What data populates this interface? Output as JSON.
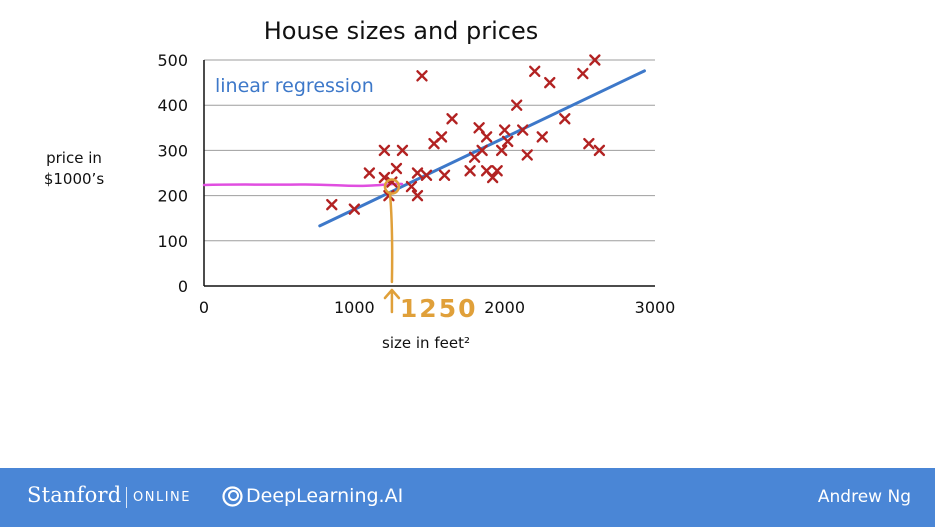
{
  "chart_data": {
    "type": "scatter",
    "title": "House sizes and prices",
    "xlabel": "size in feet²",
    "ylabel_line1": "price in",
    "ylabel_line2": "$1000’s",
    "xlim": [
      0,
      3000
    ],
    "ylim": [
      0,
      500
    ],
    "x_ticks": [
      0,
      1000,
      2000,
      3000
    ],
    "y_ticks": [
      0,
      100,
      200,
      300,
      400,
      500
    ],
    "grid": "horizontal",
    "points": [
      {
        "x": 850,
        "y": 180
      },
      {
        "x": 1000,
        "y": 170
      },
      {
        "x": 1100,
        "y": 250
      },
      {
        "x": 1200,
        "y": 300
      },
      {
        "x": 1200,
        "y": 240
      },
      {
        "x": 1230,
        "y": 200
      },
      {
        "x": 1250,
        "y": 230
      },
      {
        "x": 1280,
        "y": 260
      },
      {
        "x": 1320,
        "y": 300
      },
      {
        "x": 1380,
        "y": 220
      },
      {
        "x": 1420,
        "y": 250
      },
      {
        "x": 1420,
        "y": 200
      },
      {
        "x": 1450,
        "y": 465
      },
      {
        "x": 1480,
        "y": 245
      },
      {
        "x": 1530,
        "y": 315
      },
      {
        "x": 1580,
        "y": 330
      },
      {
        "x": 1600,
        "y": 245
      },
      {
        "x": 1650,
        "y": 370
      },
      {
        "x": 1770,
        "y": 255
      },
      {
        "x": 1800,
        "y": 285
      },
      {
        "x": 1830,
        "y": 350
      },
      {
        "x": 1850,
        "y": 300
      },
      {
        "x": 1880,
        "y": 330
      },
      {
        "x": 1880,
        "y": 255
      },
      {
        "x": 1920,
        "y": 240
      },
      {
        "x": 1950,
        "y": 255
      },
      {
        "x": 1980,
        "y": 300
      },
      {
        "x": 2000,
        "y": 345
      },
      {
        "x": 2020,
        "y": 320
      },
      {
        "x": 2080,
        "y": 400
      },
      {
        "x": 2120,
        "y": 345
      },
      {
        "x": 2150,
        "y": 290
      },
      {
        "x": 2200,
        "y": 475
      },
      {
        "x": 2250,
        "y": 330
      },
      {
        "x": 2300,
        "y": 450
      },
      {
        "x": 2400,
        "y": 370
      },
      {
        "x": 2520,
        "y": 470
      },
      {
        "x": 2560,
        "y": 315
      },
      {
        "x": 2600,
        "y": 500
      },
      {
        "x": 2630,
        "y": 300
      }
    ],
    "regression_line": {
      "label": "linear regression",
      "x": [
        770,
        2930
      ],
      "y": [
        133,
        476
      ]
    },
    "annotation": {
      "text": "1250",
      "x": 1250,
      "y": 220
    },
    "colors": {
      "points": "#b22222",
      "regression": "#3d78c9",
      "highlight": "#e0a03a",
      "freehand": "#e04ee0",
      "grid": "#9e9e9e"
    }
  },
  "footer": {
    "stanford": "Stanford",
    "online": "ONLINE",
    "deeplearning": "DeepLearning.AI",
    "author": "Andrew Ng",
    "background": "#4a86d6"
  }
}
